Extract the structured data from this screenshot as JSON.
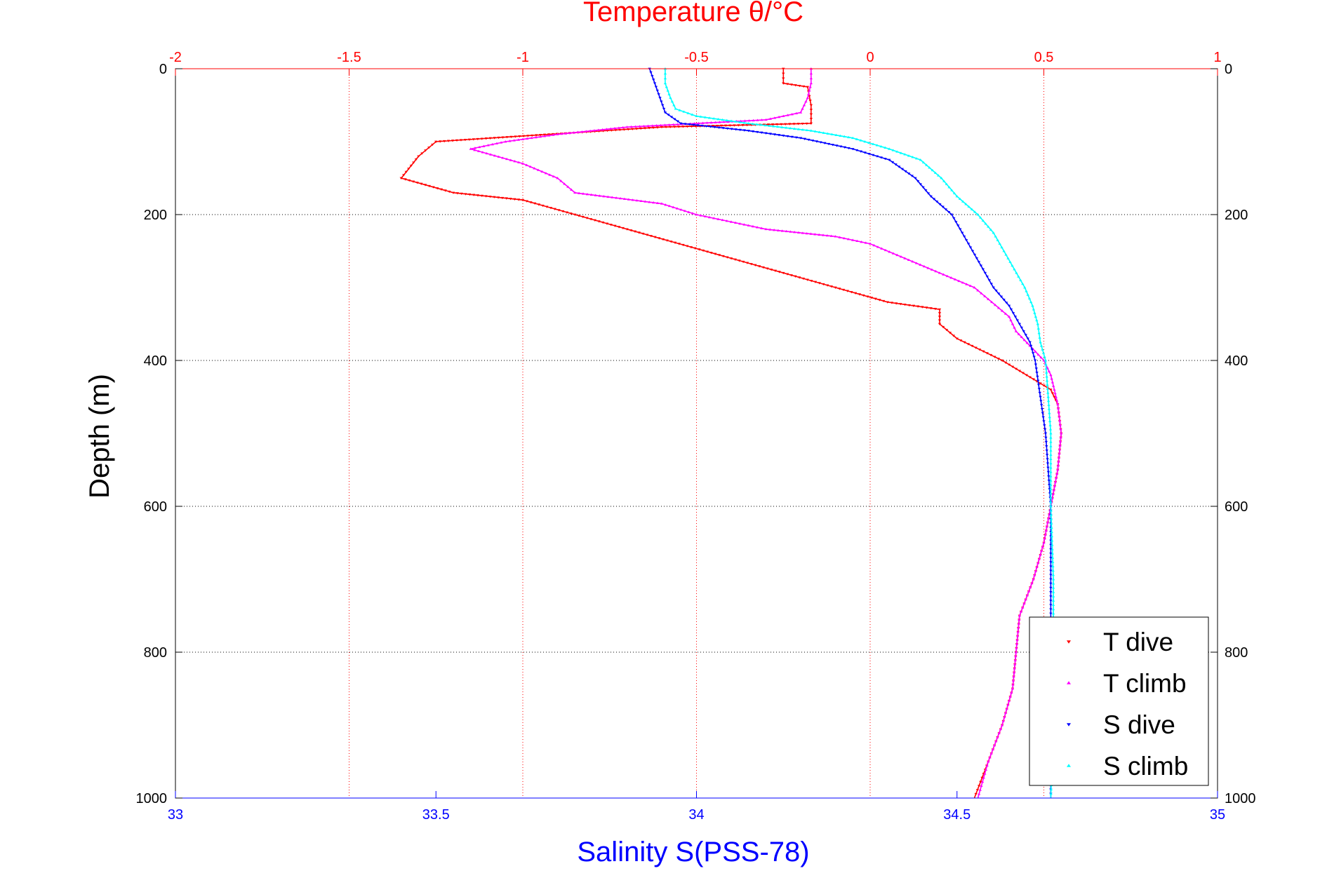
{
  "chart_data": {
    "type": "scatter",
    "title": "Temperature θ/°C",
    "xlabel": "Salinity S(PSS-78)",
    "ylabel": "Depth (m)",
    "colors": {
      "temp_axis": "#ff0000",
      "sal_axis": "#0000ff",
      "grid": "#000000",
      "frame": "#000000"
    },
    "temp_axis": {
      "range": [
        -2,
        1
      ],
      "ticks": [
        -2,
        -1.5,
        -1,
        -0.5,
        0,
        0.5,
        1
      ],
      "tick_labels": [
        "-2",
        "-1.5",
        "-1",
        "-0.5",
        "0",
        "0.5",
        "1"
      ]
    },
    "sal_axis": {
      "range": [
        33,
        35
      ],
      "ticks": [
        33,
        33.5,
        34,
        34.5,
        35
      ],
      "tick_labels": [
        "33",
        "33.5",
        "34",
        "34.5",
        "35"
      ]
    },
    "depth_axis": {
      "range": [
        0,
        1000
      ],
      "ticks": [
        0,
        200,
        400,
        600,
        800,
        1000
      ],
      "tick_labels": [
        "0",
        "200",
        "400",
        "600",
        "800",
        "1000"
      ],
      "inverted": true
    },
    "legend": {
      "position": "bottom-right",
      "entries": [
        {
          "label": "T dive",
          "color": "#ff0000",
          "marker": "triangle-down"
        },
        {
          "label": "T climb",
          "color": "#ff00ff",
          "marker": "triangle-up"
        },
        {
          "label": "S dive",
          "color": "#0000ff",
          "marker": "triangle-down"
        },
        {
          "label": "S climb",
          "color": "#00ffff",
          "marker": "triangle-up"
        }
      ]
    },
    "series": [
      {
        "name": "T dive",
        "axis": "temp",
        "color": "#ff0000",
        "points": [
          [
            0,
            -0.25
          ],
          [
            20,
            -0.25
          ],
          [
            25,
            -0.18
          ],
          [
            50,
            -0.17
          ],
          [
            75,
            -0.17
          ],
          [
            80,
            -0.6
          ],
          [
            100,
            -1.25
          ],
          [
            120,
            -1.3
          ],
          [
            150,
            -1.35
          ],
          [
            170,
            -1.2
          ],
          [
            180,
            -1.0
          ],
          [
            200,
            -0.85
          ],
          [
            220,
            -0.7
          ],
          [
            240,
            -0.55
          ],
          [
            260,
            -0.4
          ],
          [
            280,
            -0.25
          ],
          [
            300,
            -0.1
          ],
          [
            320,
            0.05
          ],
          [
            330,
            0.2
          ],
          [
            340,
            0.2
          ],
          [
            350,
            0.2
          ],
          [
            370,
            0.25
          ],
          [
            400,
            0.38
          ],
          [
            420,
            0.45
          ],
          [
            440,
            0.52
          ],
          [
            460,
            0.54
          ],
          [
            500,
            0.55
          ],
          [
            550,
            0.54
          ],
          [
            600,
            0.52
          ],
          [
            650,
            0.5
          ],
          [
            700,
            0.47
          ],
          [
            750,
            0.43
          ],
          [
            800,
            0.42
          ],
          [
            850,
            0.41
          ],
          [
            900,
            0.38
          ],
          [
            950,
            0.34
          ],
          [
            1000,
            0.3
          ]
        ]
      },
      {
        "name": "T climb",
        "axis": "temp",
        "color": "#ff00ff",
        "points": [
          [
            0,
            -0.17
          ],
          [
            20,
            -0.17
          ],
          [
            40,
            -0.18
          ],
          [
            60,
            -0.2
          ],
          [
            70,
            -0.3
          ],
          [
            80,
            -0.7
          ],
          [
            90,
            -0.9
          ],
          [
            100,
            -1.05
          ],
          [
            110,
            -1.15
          ],
          [
            130,
            -1.0
          ],
          [
            150,
            -0.9
          ],
          [
            170,
            -0.85
          ],
          [
            185,
            -0.6
          ],
          [
            200,
            -0.5
          ],
          [
            210,
            -0.4
          ],
          [
            220,
            -0.3
          ],
          [
            230,
            -0.1
          ],
          [
            240,
            0.0
          ],
          [
            260,
            0.1
          ],
          [
            280,
            0.2
          ],
          [
            300,
            0.3
          ],
          [
            320,
            0.35
          ],
          [
            340,
            0.4
          ],
          [
            360,
            0.42
          ],
          [
            380,
            0.46
          ],
          [
            400,
            0.5
          ],
          [
            420,
            0.52
          ],
          [
            440,
            0.53
          ],
          [
            460,
            0.54
          ],
          [
            500,
            0.55
          ],
          [
            550,
            0.54
          ],
          [
            600,
            0.52
          ],
          [
            650,
            0.5
          ],
          [
            700,
            0.47
          ],
          [
            750,
            0.43
          ],
          [
            800,
            0.42
          ],
          [
            850,
            0.41
          ],
          [
            900,
            0.38
          ],
          [
            950,
            0.34
          ],
          [
            1000,
            0.31
          ]
        ]
      },
      {
        "name": "S dive",
        "axis": "sal",
        "color": "#0000ff",
        "points": [
          [
            0,
            33.91
          ],
          [
            20,
            33.92
          ],
          [
            40,
            33.93
          ],
          [
            60,
            33.94
          ],
          [
            75,
            33.97
          ],
          [
            85,
            34.1
          ],
          [
            95,
            34.2
          ],
          [
            110,
            34.3
          ],
          [
            125,
            34.37
          ],
          [
            150,
            34.42
          ],
          [
            175,
            34.45
          ],
          [
            200,
            34.49
          ],
          [
            225,
            34.51
          ],
          [
            250,
            34.53
          ],
          [
            275,
            34.55
          ],
          [
            300,
            34.57
          ],
          [
            325,
            34.6
          ],
          [
            350,
            34.62
          ],
          [
            375,
            34.64
          ],
          [
            400,
            34.65
          ],
          [
            450,
            34.66
          ],
          [
            500,
            34.67
          ],
          [
            600,
            34.68
          ],
          [
            700,
            34.68
          ],
          [
            800,
            34.68
          ],
          [
            900,
            34.68
          ],
          [
            1000,
            34.68
          ]
        ]
      },
      {
        "name": "S climb",
        "axis": "sal",
        "color": "#00ffff",
        "points": [
          [
            0,
            33.94
          ],
          [
            20,
            33.94
          ],
          [
            40,
            33.95
          ],
          [
            55,
            33.96
          ],
          [
            65,
            34.0
          ],
          [
            75,
            34.1
          ],
          [
            85,
            34.22
          ],
          [
            95,
            34.3
          ],
          [
            110,
            34.37
          ],
          [
            125,
            34.43
          ],
          [
            150,
            34.47
          ],
          [
            175,
            34.5
          ],
          [
            200,
            34.54
          ],
          [
            225,
            34.57
          ],
          [
            250,
            34.59
          ],
          [
            275,
            34.61
          ],
          [
            300,
            34.63
          ],
          [
            325,
            34.645
          ],
          [
            350,
            34.655
          ],
          [
            375,
            34.66
          ],
          [
            400,
            34.67
          ],
          [
            450,
            34.675
          ],
          [
            500,
            34.68
          ],
          [
            600,
            34.68
          ],
          [
            700,
            34.685
          ],
          [
            800,
            34.685
          ],
          [
            900,
            34.685
          ],
          [
            1000,
            34.68
          ]
        ]
      }
    ]
  }
}
